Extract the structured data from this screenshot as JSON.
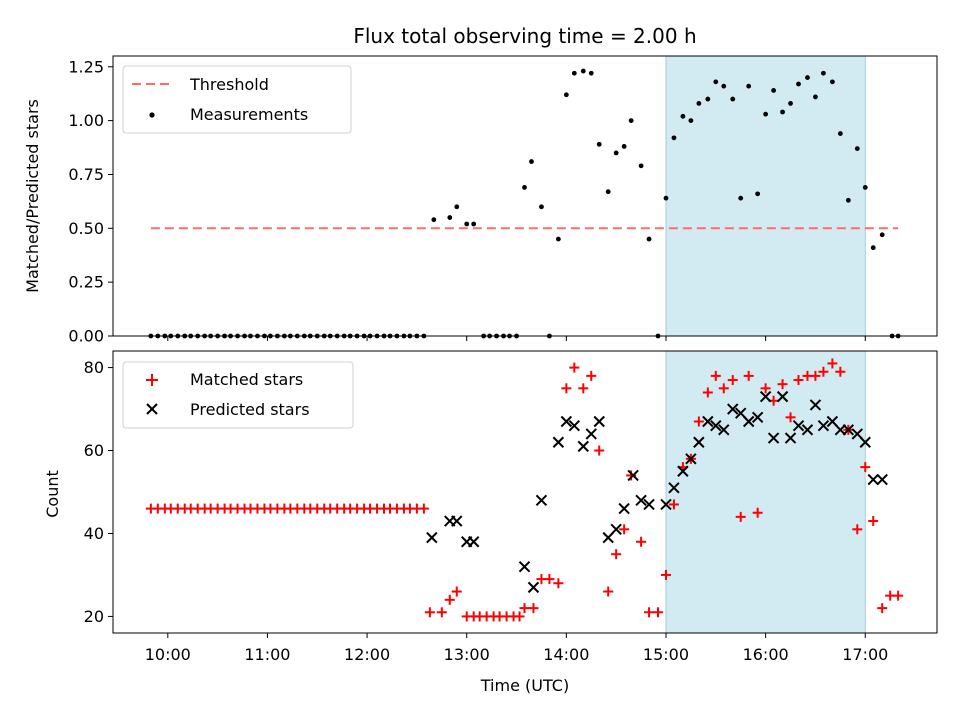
{
  "chart_data": {
    "type": "scatter",
    "title": "Flux total observing time = 2.00 h",
    "xlabel": "Time (UTC)",
    "x_unit": "hours UTC",
    "xlim": [
      9.45,
      17.72
    ],
    "x_ticks": [
      10,
      11,
      12,
      13,
      14,
      15,
      16,
      17
    ],
    "x_tick_labels": [
      "10:00",
      "11:00",
      "12:00",
      "13:00",
      "14:00",
      "15:00",
      "16:00",
      "17:00"
    ],
    "shaded_interval": {
      "start": 15.0,
      "end": 17.0,
      "color": "#add8e6"
    },
    "panels": [
      {
        "name": "ratio",
        "ylabel": "Matched/Predicted stars",
        "ylim": [
          0,
          1.3
        ],
        "y_ticks": [
          0,
          0.25,
          0.5,
          0.75,
          1.0,
          1.25
        ],
        "y_tick_labels": [
          "0.00",
          "0.25",
          "0.50",
          "0.75",
          "1.00",
          "1.25"
        ],
        "threshold": {
          "label": "Threshold",
          "value": 0.5,
          "x_start": 9.83,
          "x_end": 17.33,
          "color": "#ff6b6b"
        },
        "measurements": {
          "label": "Measurements",
          "color": "#000000",
          "zero_x": [
            9.83,
            9.9,
            9.97,
            10.03,
            10.1,
            10.17,
            10.23,
            10.3,
            10.37,
            10.43,
            10.5,
            10.57,
            10.63,
            10.7,
            10.77,
            10.83,
            10.9,
            10.97,
            11.03,
            11.1,
            11.17,
            11.23,
            11.3,
            11.37,
            11.43,
            11.5,
            11.57,
            11.63,
            11.7,
            11.77,
            11.83,
            11.9,
            11.97,
            12.03,
            12.1,
            12.17,
            12.23,
            12.3,
            12.37,
            12.43,
            12.5,
            12.57,
            13.17,
            13.23,
            13.3,
            13.37,
            13.43,
            13.5,
            13.83,
            14.92,
            17.27,
            17.33
          ],
          "x": [
            12.67,
            12.83,
            12.9,
            13.0,
            13.07,
            13.58,
            13.65,
            13.75,
            13.92,
            14.0,
            14.08,
            14.17,
            14.25,
            14.33,
            14.42,
            14.5,
            14.58,
            14.65,
            14.75,
            14.83,
            15.0,
            15.08,
            15.17,
            15.25,
            15.33,
            15.42,
            15.5,
            15.58,
            15.67,
            15.75,
            15.83,
            15.92,
            16.0,
            16.08,
            16.17,
            16.25,
            16.33,
            16.42,
            16.5,
            16.58,
            16.67,
            16.75,
            16.83,
            16.92,
            17.0,
            17.08,
            17.17
          ],
          "y": [
            0.54,
            0.55,
            0.6,
            0.52,
            0.52,
            0.69,
            0.81,
            0.6,
            0.45,
            1.12,
            1.22,
            1.23,
            1.22,
            0.89,
            0.67,
            0.85,
            0.88,
            1.0,
            0.79,
            0.45,
            0.64,
            0.92,
            1.02,
            1.0,
            1.08,
            1.1,
            1.18,
            1.16,
            1.1,
            0.64,
            1.16,
            0.66,
            1.03,
            1.14,
            1.04,
            1.08,
            1.17,
            1.2,
            1.11,
            1.22,
            1.18,
            0.94,
            0.63,
            0.87,
            0.69,
            0.41,
            0.47
          ]
        }
      },
      {
        "name": "counts",
        "ylabel": "Count",
        "ylim": [
          16,
          84
        ],
        "y_ticks": [
          20,
          40,
          60,
          80
        ],
        "y_tick_labels": [
          "20",
          "40",
          "60",
          "80"
        ],
        "matched": {
          "label": "Matched stars",
          "color": "#ff0000",
          "x": [
            9.83,
            9.9,
            9.97,
            10.03,
            10.1,
            10.17,
            10.23,
            10.3,
            10.37,
            10.43,
            10.5,
            10.57,
            10.63,
            10.7,
            10.77,
            10.83,
            10.9,
            10.97,
            11.03,
            11.1,
            11.17,
            11.23,
            11.3,
            11.37,
            11.43,
            11.5,
            11.57,
            11.63,
            11.7,
            11.77,
            11.83,
            11.9,
            11.97,
            12.03,
            12.1,
            12.17,
            12.23,
            12.3,
            12.37,
            12.43,
            12.5,
            12.57,
            12.63,
            12.75,
            12.83,
            12.9,
            13.0,
            13.07,
            13.13,
            13.2,
            13.27,
            13.33,
            13.4,
            13.47,
            13.53,
            13.58,
            13.67,
            13.75,
            13.83,
            13.92,
            14.0,
            14.08,
            14.17,
            14.25,
            14.33,
            14.42,
            14.5,
            14.58,
            14.65,
            14.75,
            14.83,
            14.92,
            15.0,
            15.08,
            15.17,
            15.25,
            15.33,
            15.42,
            15.5,
            15.58,
            15.67,
            15.75,
            15.83,
            15.92,
            16.0,
            16.08,
            16.17,
            16.25,
            16.33,
            16.42,
            16.5,
            16.58,
            16.67,
            16.75,
            16.83,
            16.92,
            17.0,
            17.08,
            17.17,
            17.25,
            17.33
          ],
          "y": [
            46,
            46,
            46,
            46,
            46,
            46,
            46,
            46,
            46,
            46,
            46,
            46,
            46,
            46,
            46,
            46,
            46,
            46,
            46,
            46,
            46,
            46,
            46,
            46,
            46,
            46,
            46,
            46,
            46,
            46,
            46,
            46,
            46,
            46,
            46,
            46,
            46,
            46,
            46,
            46,
            46,
            46,
            21,
            21,
            24,
            26,
            20,
            20,
            20,
            20,
            20,
            20,
            20,
            20,
            20,
            22,
            22,
            29,
            29,
            28,
            75,
            80,
            75,
            78,
            60,
            26,
            35,
            41,
            54,
            38,
            21,
            21,
            30,
            47,
            56,
            58,
            67,
            74,
            78,
            75,
            77,
            44,
            78,
            45,
            75,
            72,
            76,
            68,
            77,
            78,
            78,
            79,
            81,
            79,
            65,
            41,
            56,
            43,
            22,
            25,
            25
          ]
        },
        "predicted": {
          "label": "Predicted stars",
          "color": "#000000",
          "x": [
            12.65,
            12.83,
            12.9,
            13.0,
            13.07,
            13.58,
            13.67,
            13.75,
            13.92,
            14.0,
            14.08,
            14.17,
            14.25,
            14.33,
            14.42,
            14.5,
            14.58,
            14.67,
            14.75,
            14.83,
            15.0,
            15.08,
            15.17,
            15.25,
            15.33,
            15.42,
            15.5,
            15.58,
            15.67,
            15.75,
            15.83,
            15.92,
            16.0,
            16.08,
            16.17,
            16.25,
            16.33,
            16.42,
            16.5,
            16.58,
            16.67,
            16.75,
            16.83,
            16.92,
            17.0,
            17.08,
            17.17
          ],
          "y": [
            39,
            43,
            43,
            38,
            38,
            32,
            27,
            48,
            62,
            67,
            66,
            61,
            64,
            67,
            39,
            41,
            46,
            54,
            48,
            47,
            47,
            51,
            55,
            58,
            62,
            67,
            66,
            65,
            70,
            69,
            67,
            68,
            73,
            63,
            73,
            63,
            66,
            65,
            71,
            66,
            67,
            65,
            65,
            64,
            62,
            53,
            53
          ]
        }
      }
    ],
    "legend_position": "upper left"
  }
}
